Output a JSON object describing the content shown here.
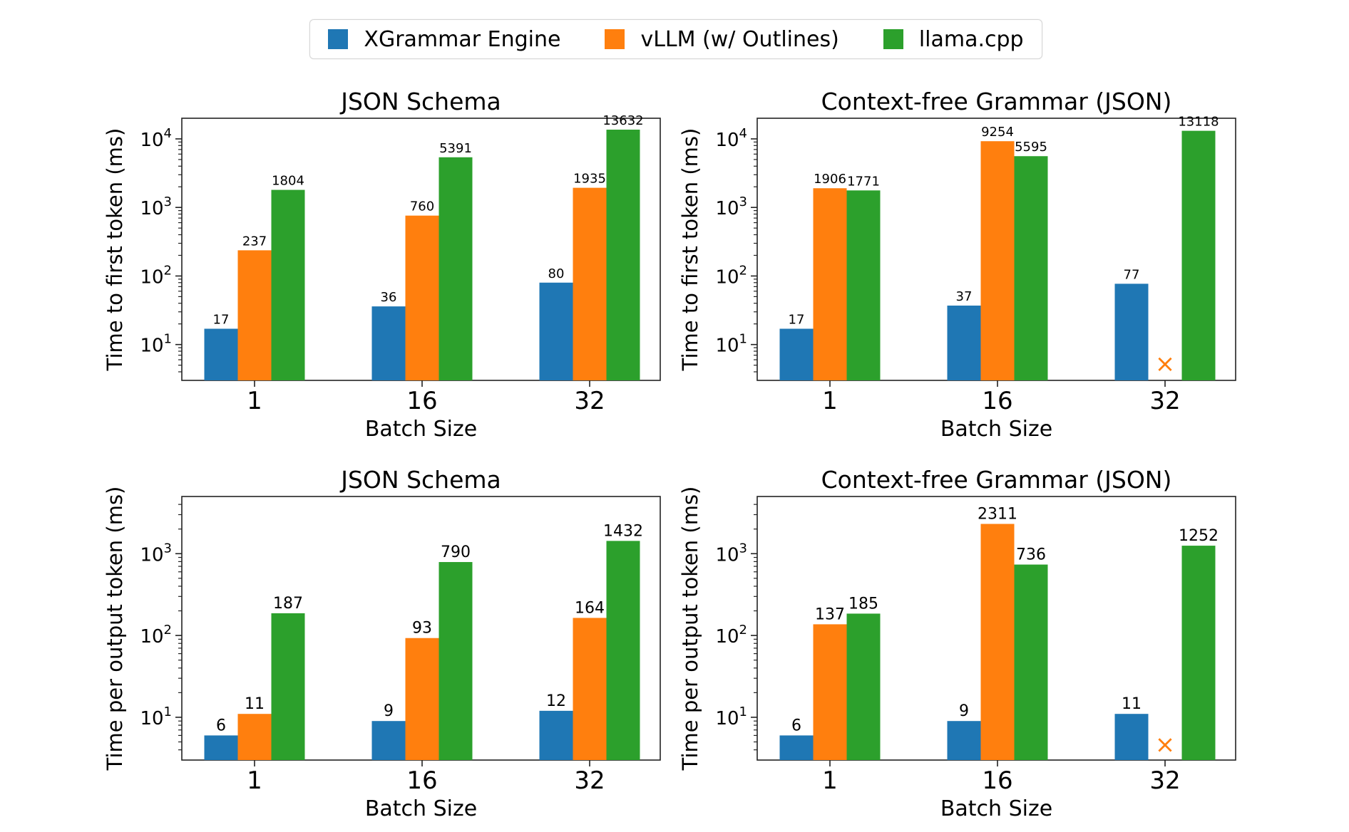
{
  "legend": {
    "items": [
      {
        "label": "XGrammar Engine",
        "color": "#1f77b4"
      },
      {
        "label": "vLLM (w/ Outlines)",
        "color": "#ff7f0e"
      },
      {
        "label": "llama.cpp",
        "color": "#2ca02c"
      }
    ]
  },
  "chart_data": [
    {
      "type": "bar",
      "title": "JSON Schema",
      "xlabel": "Batch Size",
      "ylabel": "Time to first token (ms)",
      "yscale": "log",
      "ylim": [
        3,
        20000
      ],
      "yticks": [
        {
          "exp": "1"
        },
        {
          "exp": "2"
        },
        {
          "exp": "3"
        },
        {
          "exp": "4"
        }
      ],
      "categories": [
        "1",
        "16",
        "32"
      ],
      "series": [
        {
          "name": "XGrammar Engine",
          "color": "#1f77b4",
          "values": [
            17,
            36,
            80
          ],
          "labels": [
            "17",
            "36",
            "80"
          ]
        },
        {
          "name": "vLLM (w/ Outlines)",
          "color": "#ff7f0e",
          "values": [
            237,
            760,
            1935
          ],
          "labels": [
            "237",
            "760",
            "1935"
          ]
        },
        {
          "name": "llama.cpp",
          "color": "#2ca02c",
          "values": [
            1804,
            5391,
            13632
          ],
          "labels": [
            "1804",
            "5391",
            "13632"
          ]
        }
      ]
    },
    {
      "type": "bar",
      "title": "Context-free Grammar (JSON)",
      "xlabel": "Batch Size",
      "ylabel": "Time to first token (ms)",
      "yscale": "log",
      "ylim": [
        3,
        20000
      ],
      "yticks": [
        {
          "exp": "1"
        },
        {
          "exp": "2"
        },
        {
          "exp": "3"
        },
        {
          "exp": "4"
        }
      ],
      "categories": [
        "1",
        "16",
        "32"
      ],
      "series": [
        {
          "name": "XGrammar Engine",
          "color": "#1f77b4",
          "values": [
            17,
            37,
            77
          ],
          "labels": [
            "17",
            "37",
            "77"
          ]
        },
        {
          "name": "vLLM (w/ Outlines)",
          "color": "#ff7f0e",
          "values": [
            1906,
            9254,
            null
          ],
          "labels": [
            "1906",
            "9254",
            ""
          ],
          "missing_marker": "×",
          "missing_marker_value": 5.2
        },
        {
          "name": "llama.cpp",
          "color": "#2ca02c",
          "values": [
            1771,
            5595,
            13118
          ],
          "labels": [
            "1771",
            "5595",
            "13118"
          ]
        }
      ]
    },
    {
      "type": "bar",
      "title": "JSON Schema",
      "xlabel": "Batch Size",
      "ylabel": "Time per output token (ms)",
      "yscale": "log",
      "ylim": [
        3,
        5000
      ],
      "yticks": [
        {
          "exp": "1"
        },
        {
          "exp": "2"
        },
        {
          "exp": "3"
        }
      ],
      "categories": [
        "1",
        "16",
        "32"
      ],
      "series": [
        {
          "name": "XGrammar Engine",
          "color": "#1f77b4",
          "values": [
            6,
            9,
            12
          ],
          "labels": [
            "6",
            "9",
            "12"
          ]
        },
        {
          "name": "vLLM (w/ Outlines)",
          "color": "#ff7f0e",
          "values": [
            11,
            93,
            164
          ],
          "labels": [
            "11",
            "93",
            "164"
          ]
        },
        {
          "name": "llama.cpp",
          "color": "#2ca02c",
          "values": [
            187,
            790,
            1432
          ],
          "labels": [
            "187",
            "790",
            "1432"
          ]
        }
      ]
    },
    {
      "type": "bar",
      "title": "Context-free Grammar (JSON)",
      "xlabel": "Batch Size",
      "ylabel": "Time per output token (ms)",
      "yscale": "log",
      "ylim": [
        3,
        5000
      ],
      "yticks": [
        {
          "exp": "1"
        },
        {
          "exp": "2"
        },
        {
          "exp": "3"
        }
      ],
      "categories": [
        "1",
        "16",
        "32"
      ],
      "series": [
        {
          "name": "XGrammar Engine",
          "color": "#1f77b4",
          "values": [
            6,
            9,
            11
          ],
          "labels": [
            "6",
            "9",
            "11"
          ]
        },
        {
          "name": "vLLM (w/ Outlines)",
          "color": "#ff7f0e",
          "values": [
            137,
            2311,
            null
          ],
          "labels": [
            "137",
            "2311",
            ""
          ],
          "missing_marker": "×",
          "missing_marker_value": 4.6
        },
        {
          "name": "llama.cpp",
          "color": "#2ca02c",
          "values": [
            185,
            736,
            1252
          ],
          "labels": [
            "185",
            "736",
            "1252"
          ]
        }
      ]
    }
  ]
}
